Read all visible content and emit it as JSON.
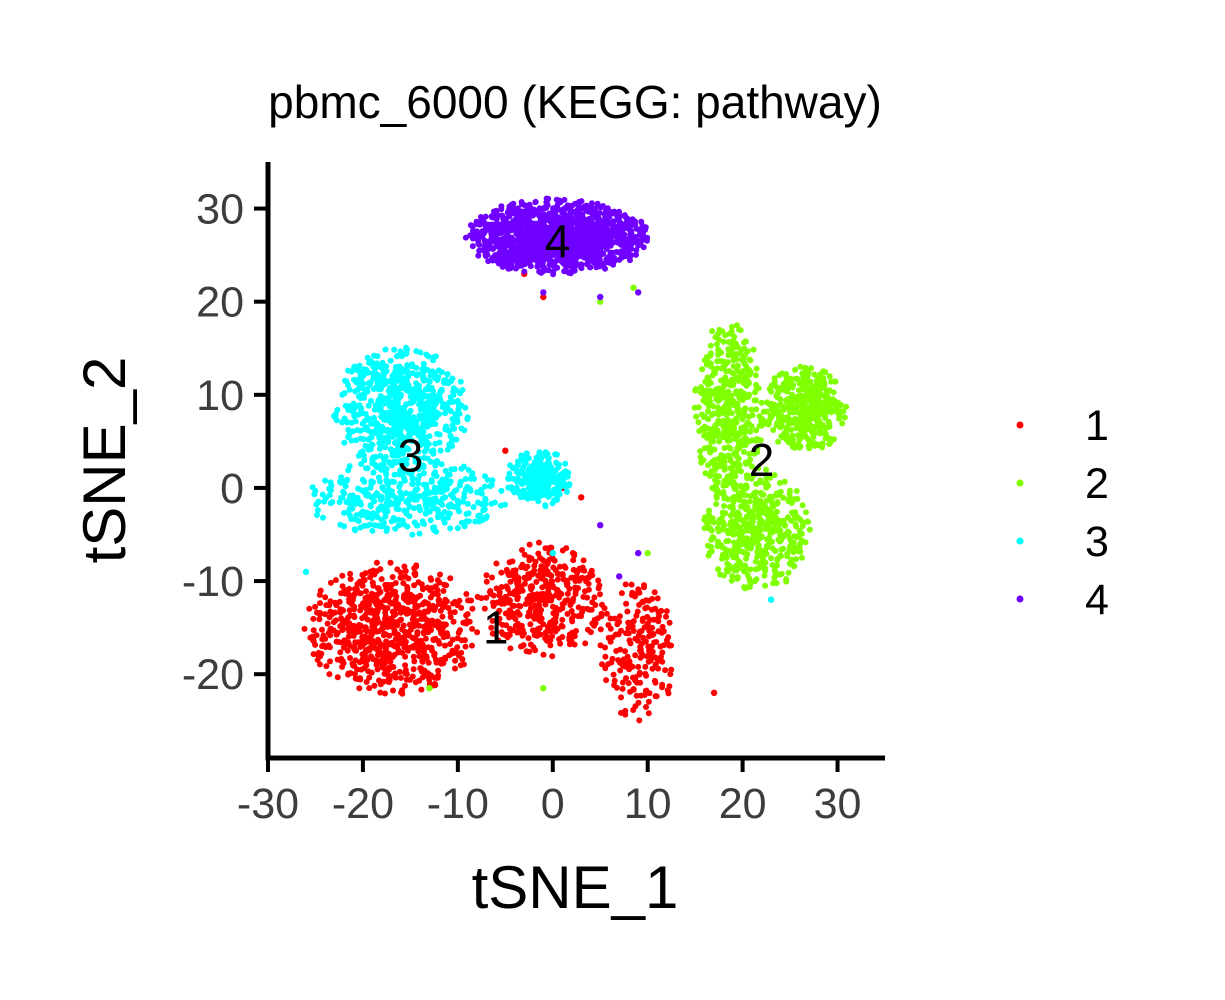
{
  "chart_data": {
    "type": "scatter",
    "title": "pbmc_6000 (KEGG: pathway)",
    "xlabel": "tSNE_1",
    "ylabel": "tSNE_2",
    "xlim": [
      -30,
      35
    ],
    "ylim": [
      -29,
      35
    ],
    "xticks": [
      -30,
      -20,
      -10,
      0,
      10,
      20,
      30
    ],
    "yticks": [
      -20,
      -10,
      0,
      10,
      20,
      30
    ],
    "grid": false,
    "legend_position": "right",
    "series": [
      {
        "name": "1",
        "color": "#ff0000",
        "label_position": [
          -6,
          -15
        ],
        "regions": [
          {
            "x": [
              -26,
              -8
            ],
            "y": [
              -22,
              -8
            ],
            "weight": 0.55
          },
          {
            "x": [
              -8,
              6
            ],
            "y": [
              -18,
              -6
            ],
            "weight": 0.3
          },
          {
            "x": [
              5,
              13
            ],
            "y": [
              -25,
              -10
            ],
            "weight": 0.15
          }
        ],
        "outliers": [
          [
            17,
            -22
          ],
          [
            -1,
            20.5
          ],
          [
            -3,
            23
          ],
          [
            1,
            0
          ],
          [
            3,
            -1
          ],
          [
            -5,
            4
          ]
        ]
      },
      {
        "name": "2",
        "color": "#7fff00",
        "label_position": [
          22,
          3
        ],
        "regions": [
          {
            "x": [
              15,
              22
            ],
            "y": [
              -2,
              18
            ],
            "weight": 0.35
          },
          {
            "x": [
              22,
              31
            ],
            "y": [
              4,
              13
            ],
            "weight": 0.3
          },
          {
            "x": [
              16,
              27
            ],
            "y": [
              -11,
              2
            ],
            "weight": 0.35
          }
        ],
        "outliers": [
          [
            10,
            -7
          ],
          [
            8.5,
            21.5
          ],
          [
            -13,
            -21.5
          ],
          [
            -1,
            -21.5
          ],
          [
            5,
            20
          ]
        ]
      },
      {
        "name": "3",
        "color": "#00ffff",
        "label_position": [
          -15,
          3.5
        ],
        "regions": [
          {
            "x": [
              -23,
              -9
            ],
            "y": [
              2,
              15
            ],
            "weight": 0.5
          },
          {
            "x": [
              -26,
              -5
            ],
            "y": [
              -5,
              3
            ],
            "weight": 0.3
          },
          {
            "x": [
              -5,
              2
            ],
            "y": [
              -2,
              4
            ],
            "weight": 0.2
          }
        ],
        "outliers": [
          [
            -26,
            -9
          ],
          [
            0,
            -7
          ],
          [
            23,
            -12
          ]
        ]
      },
      {
        "name": "4",
        "color": "#7000ff",
        "label_position": [
          0.5,
          26.5
        ],
        "regions": [
          {
            "x": [
              -9,
              10
            ],
            "y": [
              23,
              31
            ],
            "weight": 1.0
          }
        ],
        "outliers": [
          [
            -1,
            21
          ],
          [
            9,
            -7
          ],
          [
            7,
            -9.5
          ],
          [
            5,
            -4
          ],
          [
            5,
            20.5
          ],
          [
            9,
            21
          ]
        ]
      }
    ]
  }
}
